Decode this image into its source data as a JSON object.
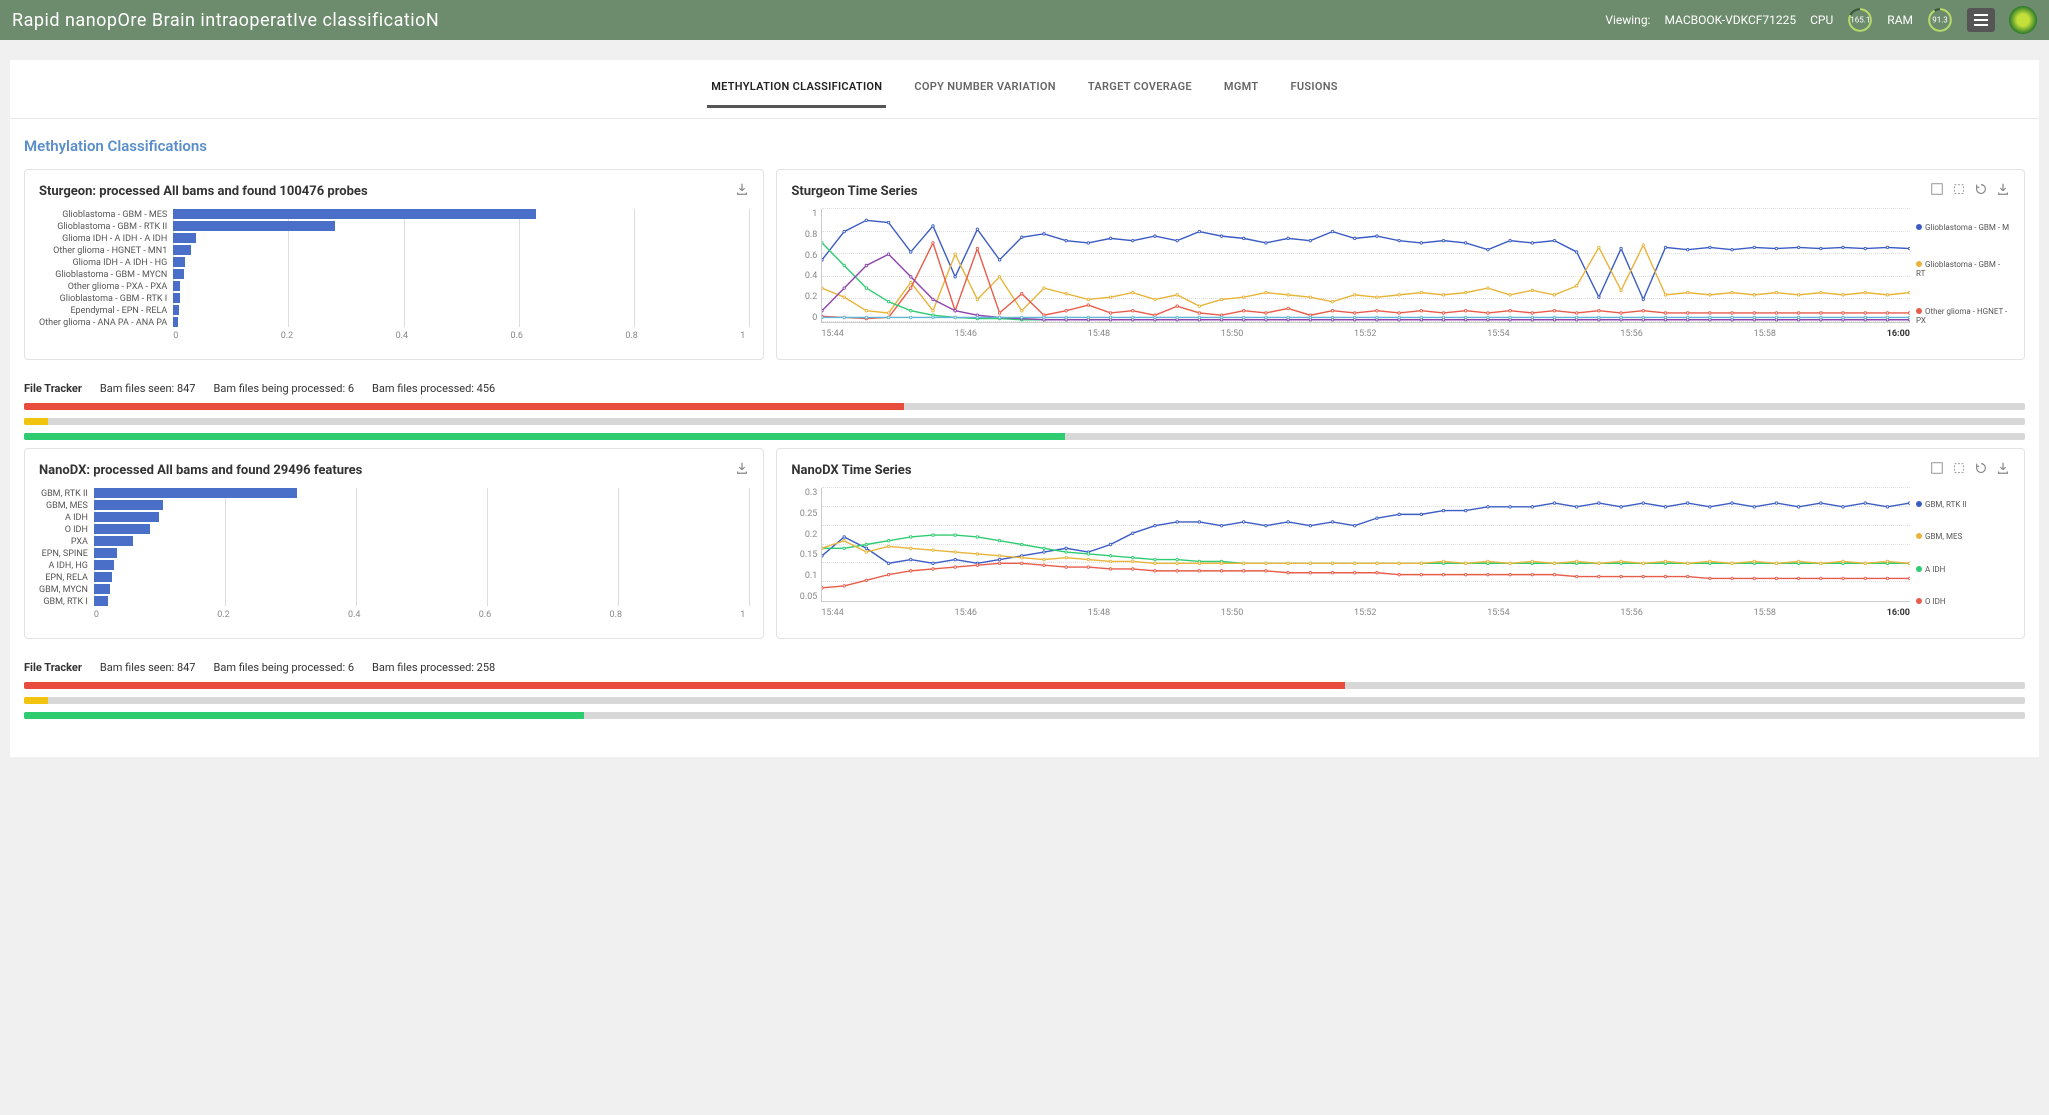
{
  "header": {
    "title": "Rapid nanopOre Brain intraoperatIve classificatioN",
    "viewing_label": "Viewing:",
    "viewing_value": "MACBOOK-VDKCF71225",
    "cpu_label": "CPU",
    "cpu_value": "165.1",
    "cpu_pct": 82,
    "ram_label": "RAM",
    "ram_value": "91.3",
    "ram_pct": 91,
    "gauge_track": "#3a5a3a",
    "gauge_fill": "#b7d96f"
  },
  "tabs": {
    "items": [
      {
        "label": "METHYLATION CLASSIFICATION",
        "active": true
      },
      {
        "label": "COPY NUMBER VARIATION",
        "active": false
      },
      {
        "label": "TARGET COVERAGE",
        "active": false
      },
      {
        "label": "MGMT",
        "active": false
      },
      {
        "label": "FUSIONS",
        "active": false
      }
    ]
  },
  "section": {
    "title": "Methylation Classifications"
  },
  "sturgeon_bar": {
    "title": "Sturgeon: processed All bams and found 100476 probes",
    "type": "bar-horizontal",
    "xlim": [
      0,
      1
    ],
    "xtick_step": 0.2,
    "bar_color": "#4a6fc9",
    "grid_color": "#dddddd",
    "label_color": "#555555",
    "label_fontsize": 9,
    "categories": [
      "Glioblastoma - GBM - MES",
      "Glioblastoma - GBM - RTK II",
      "Glioma IDH - A IDH - A IDH",
      "Other glioma - HGNET - MN1",
      "Glioma IDH - A IDH - HG",
      "Glioblastoma - GBM - MYCN",
      "Other glioma - PXA - PXA",
      "Glioblastoma - GBM - RTK I",
      "Ependymal - EPN - RELA",
      "Other glioma - ANA PA - ANA PA"
    ],
    "values": [
      0.63,
      0.28,
      0.04,
      0.03,
      0.02,
      0.018,
      0.012,
      0.011,
      0.01,
      0.009
    ]
  },
  "sturgeon_ts": {
    "title": "Sturgeon Time Series",
    "type": "line",
    "ylim": [
      0,
      1
    ],
    "ytick_step": 0.2,
    "xticks": [
      "15:44",
      "15:46",
      "15:48",
      "15:50",
      "15:52",
      "15:54",
      "15:56",
      "15:58",
      "16:00"
    ],
    "grid_color": "#e0e0e0",
    "legend": [
      {
        "label": "Glioblastoma - GBM - M",
        "color": "#3b5cc4"
      },
      {
        "label": "Glioblastoma - GBM - RT",
        "color": "#e8b43a"
      },
      {
        "label": "Other glioma - HGNET - PX",
        "color": "#e85c4a"
      }
    ],
    "series": [
      {
        "color": "#3b5cc4",
        "points": [
          0.55,
          0.8,
          0.9,
          0.88,
          0.62,
          0.85,
          0.4,
          0.82,
          0.55,
          0.75,
          0.78,
          0.72,
          0.7,
          0.74,
          0.72,
          0.76,
          0.72,
          0.8,
          0.76,
          0.74,
          0.7,
          0.74,
          0.72,
          0.8,
          0.74,
          0.76,
          0.72,
          0.7,
          0.72,
          0.7,
          0.64,
          0.72,
          0.7,
          0.72,
          0.62,
          0.22,
          0.65,
          0.2,
          0.66,
          0.64,
          0.66,
          0.64,
          0.66,
          0.65,
          0.66,
          0.65,
          0.66,
          0.65,
          0.66,
          0.65
        ]
      },
      {
        "color": "#e8b43a",
        "points": [
          0.3,
          0.22,
          0.1,
          0.08,
          0.35,
          0.1,
          0.6,
          0.2,
          0.4,
          0.1,
          0.3,
          0.25,
          0.2,
          0.22,
          0.26,
          0.2,
          0.24,
          0.14,
          0.2,
          0.22,
          0.26,
          0.24,
          0.22,
          0.18,
          0.24,
          0.22,
          0.24,
          0.26,
          0.24,
          0.26,
          0.3,
          0.24,
          0.28,
          0.24,
          0.32,
          0.66,
          0.28,
          0.68,
          0.24,
          0.26,
          0.24,
          0.26,
          0.24,
          0.26,
          0.24,
          0.26,
          0.24,
          0.26,
          0.24,
          0.26
        ]
      },
      {
        "color": "#e85c4a",
        "points": [
          0.05,
          0.04,
          0.03,
          0.04,
          0.3,
          0.7,
          0.1,
          0.65,
          0.08,
          0.25,
          0.06,
          0.1,
          0.15,
          0.08,
          0.1,
          0.06,
          0.14,
          0.08,
          0.06,
          0.1,
          0.08,
          0.12,
          0.06,
          0.1,
          0.08,
          0.1,
          0.08,
          0.1,
          0.08,
          0.1,
          0.08,
          0.1,
          0.08,
          0.1,
          0.08,
          0.1,
          0.08,
          0.1,
          0.08,
          0.08,
          0.08,
          0.08,
          0.08,
          0.08,
          0.08,
          0.08,
          0.08,
          0.08,
          0.08,
          0.08
        ]
      },
      {
        "color": "#2ecc71",
        "points": [
          0.7,
          0.5,
          0.3,
          0.18,
          0.1,
          0.06,
          0.04,
          0.03,
          0.03,
          0.02,
          0.02,
          0.02,
          0.02,
          0.02,
          0.02,
          0.02,
          0.02,
          0.02,
          0.02,
          0.02,
          0.02,
          0.02,
          0.02,
          0.02,
          0.02,
          0.02,
          0.02,
          0.02,
          0.02,
          0.02,
          0.02,
          0.02,
          0.02,
          0.02,
          0.02,
          0.02,
          0.02,
          0.02,
          0.02,
          0.02,
          0.02,
          0.02,
          0.02,
          0.02,
          0.02,
          0.02,
          0.02,
          0.02,
          0.02,
          0.02
        ]
      },
      {
        "color": "#8e44ad",
        "points": [
          0.1,
          0.3,
          0.5,
          0.6,
          0.4,
          0.2,
          0.1,
          0.06,
          0.04,
          0.03,
          0.02,
          0.02,
          0.02,
          0.02,
          0.02,
          0.02,
          0.02,
          0.02,
          0.02,
          0.02,
          0.02,
          0.02,
          0.02,
          0.02,
          0.02,
          0.02,
          0.02,
          0.02,
          0.02,
          0.02,
          0.02,
          0.02,
          0.02,
          0.02,
          0.02,
          0.02,
          0.02,
          0.02,
          0.02,
          0.02,
          0.02,
          0.02,
          0.02,
          0.02,
          0.02,
          0.02,
          0.02,
          0.02,
          0.02,
          0.02
        ]
      },
      {
        "color": "#5fb5d6",
        "points": [
          0.04,
          0.04,
          0.04,
          0.04,
          0.04,
          0.04,
          0.04,
          0.04,
          0.04,
          0.04,
          0.04,
          0.04,
          0.04,
          0.04,
          0.04,
          0.04,
          0.04,
          0.04,
          0.04,
          0.04,
          0.04,
          0.04,
          0.04,
          0.04,
          0.04,
          0.04,
          0.04,
          0.04,
          0.04,
          0.04,
          0.04,
          0.04,
          0.04,
          0.04,
          0.04,
          0.04,
          0.04,
          0.04,
          0.04,
          0.04,
          0.04,
          0.04,
          0.04,
          0.04,
          0.04,
          0.04,
          0.04,
          0.04,
          0.04,
          0.04
        ]
      }
    ]
  },
  "tracker1": {
    "label": "File Tracker",
    "seen_label": "Bam files seen:",
    "seen_value": "847",
    "processing_label": "Bam files being processed:",
    "processing_value": "6",
    "processed_label": "Bam files processed:",
    "processed_value": "456",
    "bars": [
      {
        "color": "red",
        "pct": 44
      },
      {
        "color": "yellow",
        "pct": 1.2
      },
      {
        "color": "green",
        "pct": 52
      }
    ]
  },
  "nanodx_bar": {
    "title": "NanoDX: processed All bams and found 29496 features",
    "type": "bar-horizontal",
    "xlim": [
      0,
      1
    ],
    "xtick_step": 0.2,
    "bar_color": "#4a6fc9",
    "categories": [
      "GBM, RTK II",
      "GBM, MES",
      "A IDH",
      "O IDH",
      "PXA",
      "EPN, SPINE",
      "A IDH, HG",
      "EPN, RELA",
      "GBM, MYCN",
      "GBM, RTK I"
    ],
    "values": [
      0.31,
      0.105,
      0.1,
      0.085,
      0.06,
      0.035,
      0.03,
      0.028,
      0.025,
      0.022
    ]
  },
  "nanodx_ts": {
    "title": "NanoDX Time Series",
    "type": "line",
    "ylim": [
      0,
      0.3
    ],
    "yticks": [
      0.05,
      0.1,
      0.15,
      0.2,
      0.25,
      0.3
    ],
    "xticks": [
      "15:44",
      "15:46",
      "15:48",
      "15:50",
      "15:52",
      "15:54",
      "15:56",
      "15:58",
      "16:00"
    ],
    "legend": [
      {
        "label": "GBM, RTK II",
        "color": "#3b5cc4"
      },
      {
        "label": "GBM, MES",
        "color": "#e8b43a"
      },
      {
        "label": "A IDH",
        "color": "#2ecc71"
      },
      {
        "label": "O IDH",
        "color": "#e85c4a"
      }
    ],
    "series": [
      {
        "color": "#3b5cc4",
        "points": [
          0.12,
          0.17,
          0.14,
          0.1,
          0.11,
          0.1,
          0.11,
          0.1,
          0.11,
          0.12,
          0.13,
          0.14,
          0.13,
          0.15,
          0.18,
          0.2,
          0.21,
          0.21,
          0.2,
          0.21,
          0.2,
          0.21,
          0.2,
          0.21,
          0.2,
          0.22,
          0.23,
          0.23,
          0.24,
          0.24,
          0.25,
          0.25,
          0.25,
          0.26,
          0.25,
          0.26,
          0.25,
          0.26,
          0.25,
          0.26,
          0.25,
          0.26,
          0.25,
          0.26,
          0.25,
          0.26,
          0.25,
          0.26,
          0.25,
          0.26
        ]
      },
      {
        "color": "#2ecc71",
        "points": [
          0.14,
          0.14,
          0.15,
          0.16,
          0.17,
          0.175,
          0.175,
          0.17,
          0.16,
          0.15,
          0.14,
          0.13,
          0.125,
          0.12,
          0.115,
          0.11,
          0.11,
          0.105,
          0.105,
          0.1,
          0.1,
          0.1,
          0.1,
          0.1,
          0.1,
          0.1,
          0.1,
          0.1,
          0.1,
          0.1,
          0.1,
          0.1,
          0.1,
          0.1,
          0.1,
          0.1,
          0.1,
          0.1,
          0.1,
          0.1,
          0.1,
          0.1,
          0.1,
          0.1,
          0.1,
          0.1,
          0.1,
          0.1,
          0.1,
          0.1
        ]
      },
      {
        "color": "#e8b43a",
        "points": [
          0.14,
          0.16,
          0.13,
          0.145,
          0.14,
          0.135,
          0.13,
          0.125,
          0.12,
          0.115,
          0.11,
          0.115,
          0.11,
          0.105,
          0.105,
          0.1,
          0.1,
          0.1,
          0.1,
          0.1,
          0.1,
          0.1,
          0.1,
          0.1,
          0.1,
          0.1,
          0.1,
          0.1,
          0.105,
          0.1,
          0.105,
          0.1,
          0.105,
          0.1,
          0.105,
          0.1,
          0.105,
          0.1,
          0.105,
          0.1,
          0.105,
          0.1,
          0.105,
          0.1,
          0.105,
          0.1,
          0.105,
          0.1,
          0.105,
          0.1
        ]
      },
      {
        "color": "#e85c4a",
        "points": [
          0.035,
          0.04,
          0.055,
          0.07,
          0.08,
          0.085,
          0.09,
          0.095,
          0.1,
          0.1,
          0.095,
          0.09,
          0.09,
          0.085,
          0.085,
          0.08,
          0.08,
          0.08,
          0.08,
          0.08,
          0.08,
          0.075,
          0.075,
          0.075,
          0.075,
          0.075,
          0.07,
          0.07,
          0.07,
          0.07,
          0.07,
          0.07,
          0.07,
          0.07,
          0.065,
          0.065,
          0.065,
          0.065,
          0.065,
          0.065,
          0.06,
          0.06,
          0.06,
          0.06,
          0.06,
          0.06,
          0.06,
          0.06,
          0.06,
          0.06
        ]
      }
    ]
  },
  "tracker2": {
    "label": "File Tracker",
    "seen_label": "Bam files seen:",
    "seen_value": "847",
    "processing_label": "Bam files being processed:",
    "processing_value": "6",
    "processed_label": "Bam files processed:",
    "processed_value": "258",
    "bars": [
      {
        "color": "red",
        "pct": 66
      },
      {
        "color": "yellow",
        "pct": 1.2
      },
      {
        "color": "green",
        "pct": 28
      }
    ]
  }
}
